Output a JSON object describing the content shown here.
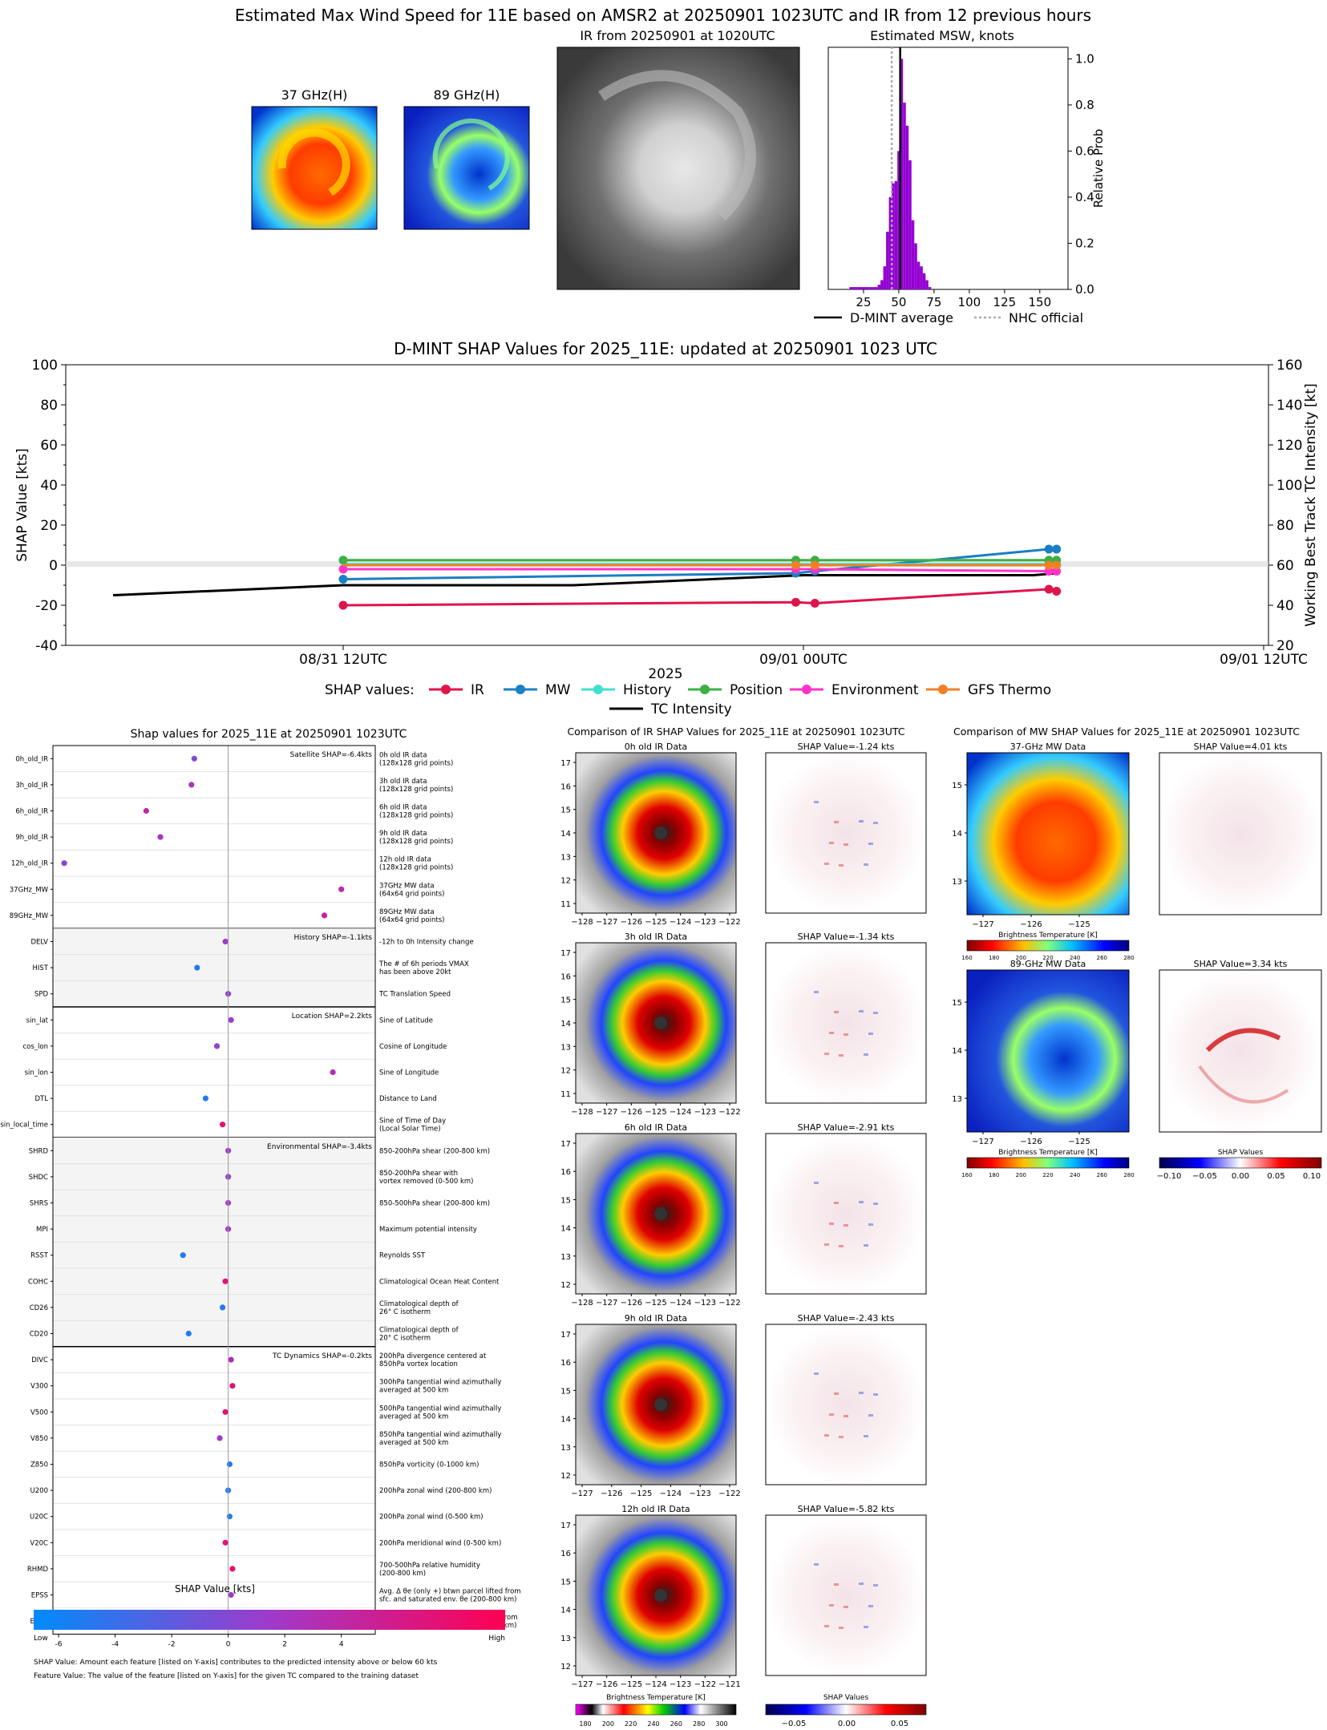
{
  "header": {
    "title": "Estimated Max Wind Speed for 11E based on AMSR2 at 20250901 1023UTC and IR from 12 previous hours",
    "mw37_label": "37 GHz(H)",
    "mw89_label": "89 GHz(H)",
    "ir_label": "IR from 20250901 at 1020UTC"
  },
  "msw_hist": {
    "type": "bar",
    "title": "Estimated MSW, knots",
    "ylabel": "Relative Prob",
    "xlim": [
      0,
      170
    ],
    "ylim": [
      0,
      1.05
    ],
    "xticks": [
      "25",
      "50",
      "75",
      "100",
      "125",
      "150"
    ],
    "yticks": [
      "0.0",
      "0.2",
      "0.4",
      "0.6",
      "0.8",
      "1.0"
    ],
    "bins": [
      15,
      20,
      25,
      30,
      35,
      37,
      39,
      41,
      43,
      45,
      47,
      49,
      51,
      53,
      55,
      57,
      59,
      61,
      63,
      65,
      67,
      69,
      71
    ],
    "values": [
      0.01,
      0.01,
      0.01,
      0.01,
      0.02,
      0.04,
      0.1,
      0.25,
      0.4,
      0.46,
      0.47,
      0.6,
      1.0,
      0.81,
      0.71,
      0.56,
      0.3,
      0.2,
      0.12,
      0.1,
      0.07,
      0.04,
      0.01
    ],
    "dmint_avg": 51,
    "nhc_official": 45,
    "legend": [
      "D-MINT average",
      "NHC official"
    ],
    "color": "#9400d3"
  },
  "shap_ts": {
    "type": "line",
    "title": "D-MINT SHAP Values for 2025_11E: updated at 20250901 1023 UTC",
    "ylabel": "SHAP Value [kts]",
    "y2label": "Working Best Track TC Intensity [kt]",
    "xlabel": "2025",
    "ylim": [
      -40,
      100
    ],
    "y2lim": [
      20,
      160
    ],
    "yticks": [
      "-40",
      "-20",
      "0",
      "20",
      "40",
      "60",
      "80",
      "100"
    ],
    "y2ticks": [
      "20",
      "40",
      "60",
      "80",
      "100",
      "120",
      "140",
      "160"
    ],
    "xticks": [
      "08/31 12UTC",
      "09/01 00UTC",
      "09/01 12UTC"
    ],
    "x_hours": [
      0,
      12,
      24
    ],
    "legend_title": "SHAP values:",
    "series": [
      {
        "name": "IR",
        "color": "#e0144c",
        "x": [
          0,
          11.8,
          12.3,
          18.4,
          18.6
        ],
        "y": [
          -20,
          -18.5,
          -19,
          -12,
          -13
        ]
      },
      {
        "name": "MW",
        "color": "#1a7fc4",
        "x": [
          0,
          11.8,
          12.3,
          18.4,
          18.6
        ],
        "y": [
          -7,
          -4,
          -3,
          8,
          8
        ]
      },
      {
        "name": "History",
        "color": "#40e0d0",
        "x": [
          0,
          11.8,
          12.3,
          18.4,
          18.6
        ],
        "y": [
          0.5,
          0.5,
          0.5,
          0.5,
          0.5
        ]
      },
      {
        "name": "Position",
        "color": "#3cb043",
        "x": [
          0,
          11.8,
          12.3,
          18.4,
          18.6
        ],
        "y": [
          2.5,
          2.5,
          2.5,
          2.5,
          2.5
        ]
      },
      {
        "name": "Environment",
        "color": "#ff33cc",
        "x": [
          0,
          11.8,
          12.3,
          18.4,
          18.6
        ],
        "y": [
          -2,
          -2,
          -2,
          -3,
          -3
        ]
      },
      {
        "name": "GFS Thermo",
        "color": "#f07f26",
        "x": [
          0,
          11.8,
          12.3,
          18.4,
          18.6
        ],
        "y": [
          0,
          0,
          0,
          0,
          0
        ]
      }
    ],
    "intensity": {
      "name": "TC Intensity",
      "x": [
        -6,
        0,
        6,
        12,
        18,
        18.6
      ],
      "y": [
        45,
        50,
        50,
        55,
        55,
        56
      ]
    }
  },
  "shap_features": {
    "type": "scatter",
    "title": "Shap values for 2025_11E at 20250901 1023UTC",
    "xlabel": "SHAP Value [kts]",
    "xlim": [
      -6.2,
      5.2
    ],
    "xticks": [
      "-6",
      "-4",
      "-2",
      "0",
      "2",
      "4"
    ],
    "colorbar": {
      "low": "Low",
      "high": "High"
    },
    "groups": [
      {
        "label": "Satellite SHAP=-6.4kts",
        "shaded": false,
        "features": [
          {
            "name": "0h_old_IR",
            "desc": [
              "0h old IR data",
              "(128x128 grid points)"
            ],
            "shap": -1.2,
            "fv": 0.4
          },
          {
            "name": "3h_old_IR",
            "desc": [
              "3h old IR data",
              "(128x128 grid points)"
            ],
            "shap": -1.3,
            "fv": 0.55
          },
          {
            "name": "6h_old_IR",
            "desc": [
              "6h old IR data",
              "(128x128 grid points)"
            ],
            "shap": -2.9,
            "fv": 0.65
          },
          {
            "name": "9h_old_IR",
            "desc": [
              "9h old IR data",
              "(128x128 grid points)"
            ],
            "shap": -2.4,
            "fv": 0.55
          },
          {
            "name": "12h_old_IR",
            "desc": [
              "12h old IR data",
              "(128x128 grid points)"
            ],
            "shap": -5.8,
            "fv": 0.45
          },
          {
            "name": "37GHz_MW",
            "desc": [
              "37GHz MW data",
              "(64x64 grid points)"
            ],
            "shap": 4.0,
            "fv": 0.65
          },
          {
            "name": "89GHz_MW",
            "desc": [
              "89GHz MW data",
              "(64x64 grid points)"
            ],
            "shap": 3.4,
            "fv": 0.7
          }
        ]
      },
      {
        "label": "History SHAP=-1.1kts",
        "shaded": true,
        "features": [
          {
            "name": "DELV",
            "desc": [
              "-12h to 0h Intensity change"
            ],
            "shap": -0.1,
            "fv": 0.5
          },
          {
            "name": "HIST",
            "desc": [
              "The # of 6h periods VMAX",
              "has been above 20kt"
            ],
            "shap": -1.1,
            "fv": 0.1
          },
          {
            "name": "SPD",
            "desc": [
              "TC Translation Speed"
            ],
            "shap": 0.0,
            "fv": 0.45
          }
        ]
      },
      {
        "label": "Location SHAP=2.2kts",
        "shaded": false,
        "features": [
          {
            "name": "sin_lat",
            "desc": [
              "Sine of Latitude"
            ],
            "shap": 0.1,
            "fv": 0.5
          },
          {
            "name": "cos_lon",
            "desc": [
              "Cosine of Longitude"
            ],
            "shap": -0.4,
            "fv": 0.45
          },
          {
            "name": "sin_lon",
            "desc": [
              "Sine of Longitude"
            ],
            "shap": 3.7,
            "fv": 0.6
          },
          {
            "name": "DTL",
            "desc": [
              "Distance to Land"
            ],
            "shap": -0.8,
            "fv": 0.1
          },
          {
            "name": "sin_local_time",
            "desc": [
              "Sine of Time of Day",
              "(Local Solar Time)"
            ],
            "shap": -0.2,
            "fv": 0.85
          }
        ]
      },
      {
        "label": "Environmental SHAP=-3.4kts",
        "shaded": true,
        "features": [
          {
            "name": "SHRD",
            "desc": [
              "850-200hPa shear (200-800 km)"
            ],
            "shap": 0.0,
            "fv": 0.5
          },
          {
            "name": "SHDC",
            "desc": [
              "850-200hPa shear with",
              "vortex removed (0-500 km)"
            ],
            "shap": 0.0,
            "fv": 0.45
          },
          {
            "name": "SHRS",
            "desc": [
              "850-500hPa shear (200-800 km)"
            ],
            "shap": 0.0,
            "fv": 0.5
          },
          {
            "name": "MPI",
            "desc": [
              "Maximum potential intensity"
            ],
            "shap": 0.0,
            "fv": 0.5
          },
          {
            "name": "RSST",
            "desc": [
              "Reynolds SST"
            ],
            "shap": -1.6,
            "fv": 0.1
          },
          {
            "name": "COHC",
            "desc": [
              "Climatological Ocean Heat Content"
            ],
            "shap": -0.1,
            "fv": 0.85
          },
          {
            "name": "CD26",
            "desc": [
              "Climatological depth of",
              "26° C isotherm"
            ],
            "shap": -0.2,
            "fv": 0.1
          },
          {
            "name": "CD20",
            "desc": [
              "Climatological depth of",
              "20° C isotherm"
            ],
            "shap": -1.4,
            "fv": 0.1
          }
        ]
      },
      {
        "label": "TC Dynamics SHAP=-0.2kts",
        "shaded": false,
        "features": [
          {
            "name": "DIVC",
            "desc": [
              "200hPa divergence centered at",
              "850hPa vortex location"
            ],
            "shap": 0.1,
            "fv": 0.6
          },
          {
            "name": "V300",
            "desc": [
              "300hPa tangential wind azimuthally",
              "averaged at 500 km"
            ],
            "shap": 0.15,
            "fv": 0.85
          },
          {
            "name": "V500",
            "desc": [
              "500hPa tangential wind azimuthally",
              "averaged at 500 km"
            ],
            "shap": -0.1,
            "fv": 0.85
          },
          {
            "name": "V850",
            "desc": [
              "850hPa tangential wind azimuthally",
              "averaged at 500 km"
            ],
            "shap": -0.3,
            "fv": 0.5
          },
          {
            "name": "Z850",
            "desc": [
              "850hPa vorticity (0-1000 km)"
            ],
            "shap": 0.05,
            "fv": 0.1
          },
          {
            "name": "U200",
            "desc": [
              "200hPa zonal wind (200-800 km)"
            ],
            "shap": 0.0,
            "fv": 0.1
          },
          {
            "name": "U20C",
            "desc": [
              "200hPa zonal wind (0-500 km)"
            ],
            "shap": 0.05,
            "fv": 0.1
          },
          {
            "name": "V20C",
            "desc": [
              "200hPa meridional wind (0-500 km)"
            ],
            "shap": -0.1,
            "fv": 0.85
          },
          {
            "name": "RHMD",
            "desc": [
              "700-500hPa relative humidity",
              "(200-800 km)"
            ],
            "shap": 0.15,
            "fv": 0.9
          },
          {
            "name": "EPSS",
            "desc": [
              "Avg. Δ θe (only +) btwn parcel lifted from",
              "sfc. and saturated env. θe (200-800 km)"
            ],
            "shap": 0.1,
            "fv": 0.5
          },
          {
            "name": "ENSS",
            "desc": [
              "Avg. Δ θe (only -) btwn parcel lifted from",
              "sfc. and saturated env. θe (200-800 km)"
            ],
            "shap": -0.05,
            "fv": 0.5
          }
        ]
      }
    ],
    "footnote1": "SHAP Value: Amount each feature [listed on Y-axis] contributes to the predicted intensity above or below 60 kts",
    "footnote2": "Feature Value: The value of the feature [listed on Y-axis] for the given TC compared to the training dataset"
  },
  "ir_compare": {
    "title": "Comparison of IR SHAP Values for 2025_11E at 20250901 1023UTC",
    "panels": [
      {
        "label": "0h old IR Data",
        "shap_label": "SHAP Value=-1.24 kts",
        "yticks": [
          "17",
          "16",
          "15",
          "14",
          "13",
          "12",
          "11"
        ],
        "xticks": [
          "−128",
          "−127",
          "−126",
          "−125",
          "−124",
          "−123",
          "−122"
        ]
      },
      {
        "label": "3h old IR Data",
        "shap_label": "SHAP Value=-1.34 kts",
        "yticks": [
          "17",
          "16",
          "15",
          "14",
          "13",
          "12",
          "11"
        ],
        "xticks": [
          "−128",
          "−127",
          "−126",
          "−125",
          "−124",
          "−123",
          "−122"
        ]
      },
      {
        "label": "6h old IR Data",
        "shap_label": "SHAP Value=-2.91 kts",
        "yticks": [
          "17",
          "16",
          "15",
          "14",
          "13",
          "12"
        ],
        "xticks": [
          "−128",
          "−127",
          "−126",
          "−125",
          "−124",
          "−123",
          "−122"
        ]
      },
      {
        "label": "9h old IR Data",
        "shap_label": "SHAP Value=-2.43 kts",
        "yticks": [
          "17",
          "16",
          "15",
          "14",
          "13",
          "12"
        ],
        "xticks": [
          "−127",
          "−126",
          "−125",
          "−124",
          "−123",
          "−122"
        ]
      },
      {
        "label": "12h old IR Data",
        "shap_label": "SHAP Value=-5.82 kts",
        "yticks": [
          "17",
          "16",
          "15",
          "14",
          "13",
          "12"
        ],
        "xticks": [
          "−127",
          "−126",
          "−125",
          "−124",
          "−123",
          "−122",
          "−121"
        ]
      }
    ],
    "cbar_label": "Brightness Temperature [K]",
    "cbar_ticks": [
      "180",
      "200",
      "220",
      "240",
      "260",
      "280",
      "300"
    ],
    "shap_cbar_label": "SHAP Values",
    "shap_cbar_ticks": [
      "−0.05",
      "0.00",
      "0.05"
    ]
  },
  "mw_compare": {
    "title": "Comparison of MW SHAP Values for 2025_11E at 20250901 1023UTC",
    "panels": [
      {
        "label": "37-GHz MW Data",
        "shap_label": "SHAP Value=4.01 kts"
      },
      {
        "label": "89-GHz MW Data",
        "shap_label": "SHAP Value=3.34 kts"
      }
    ],
    "yticks": [
      "15",
      "14",
      "13"
    ],
    "xticks": [
      "−127",
      "−126",
      "−125"
    ],
    "cbar_label": "Brightness Temperature [K]",
    "cbar_ticks": [
      "160",
      "180",
      "200",
      "220",
      "240",
      "260",
      "280"
    ],
    "shap_cbar_label": "SHAP Values",
    "shap_cbar_ticks": [
      "−0.10",
      "−0.05",
      "0.00",
      "0.05",
      "0.10"
    ]
  }
}
